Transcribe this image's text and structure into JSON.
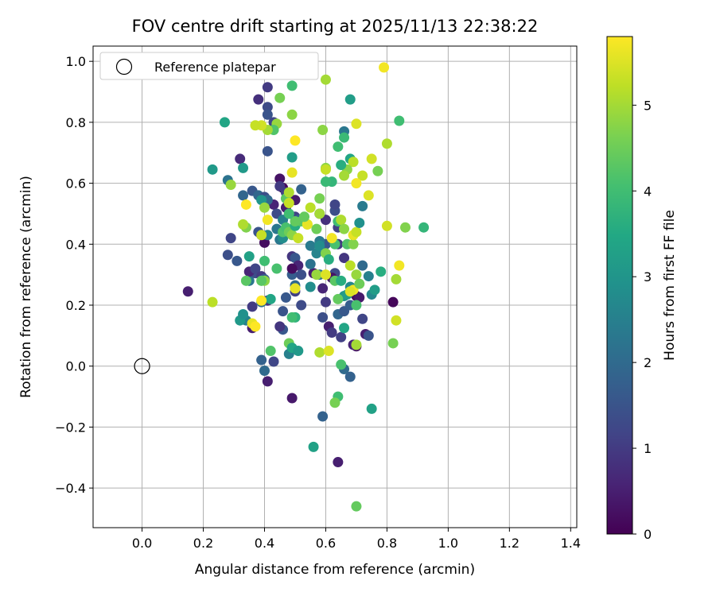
{
  "chart_data": {
    "type": "scatter",
    "title": "FOV centre drift starting at 2025/11/13 22:38:22",
    "xlabel": "Angular distance from reference (arcmin)",
    "ylabel": "Rotation from reference (arcmin)",
    "xlim": [
      -0.16,
      1.42
    ],
    "ylim": [
      -0.53,
      1.05
    ],
    "xticks": [
      0.0,
      0.2,
      0.4,
      0.6,
      0.8,
      1.0,
      1.2,
      1.4
    ],
    "xtick_labels": [
      "0.0",
      "0.2",
      "0.4",
      "0.6",
      "0.8",
      "1.0",
      "1.2",
      "1.4"
    ],
    "yticks": [
      -0.4,
      -0.2,
      0.0,
      0.2,
      0.4,
      0.6,
      0.8,
      1.0
    ],
    "ytick_labels": [
      "−0.4",
      "−0.2",
      "0.0",
      "0.2",
      "0.4",
      "0.6",
      "0.8",
      "1.0"
    ],
    "grid": true,
    "legend": {
      "placement": "top-left",
      "entries": [
        "Reference platepar"
      ]
    },
    "reference_point": {
      "x": 0.0,
      "y": 0.0,
      "label": "Reference platepar"
    },
    "colorbar": {
      "label": "Hours from first FF file",
      "min": 0,
      "max": 5.8,
      "ticks": [
        0,
        1,
        2,
        3,
        4,
        5
      ],
      "tick_labels": [
        "0",
        "1",
        "2",
        "3",
        "4",
        "5"
      ],
      "colormap": "viridis"
    },
    "series": [
      {
        "name": "FOV centre drift",
        "points": [
          [
            0.15,
            0.245,
            0.5
          ],
          [
            0.41,
            0.915,
            1.0
          ],
          [
            0.38,
            0.875,
            0.8
          ],
          [
            0.41,
            0.85,
            1.3
          ],
          [
            0.41,
            0.825,
            1.5
          ],
          [
            0.43,
            0.8,
            1.2
          ],
          [
            0.41,
            0.705,
            1.5
          ],
          [
            0.32,
            0.68,
            0.7
          ],
          [
            0.28,
            0.61,
            2.2
          ],
          [
            0.45,
            0.615,
            0.3
          ],
          [
            0.46,
            0.585,
            0.1
          ],
          [
            0.47,
            0.57,
            1.1
          ],
          [
            0.43,
            0.53,
            0.6
          ],
          [
            0.5,
            0.545,
            0.4
          ],
          [
            0.52,
            0.58,
            1.8
          ],
          [
            0.36,
            0.575,
            1.6
          ],
          [
            0.38,
            0.56,
            1.9
          ],
          [
            0.4,
            0.555,
            1.4
          ],
          [
            0.41,
            0.545,
            2.0
          ],
          [
            0.44,
            0.5,
            1.3
          ],
          [
            0.47,
            0.52,
            0.5
          ],
          [
            0.48,
            0.5,
            2.4
          ],
          [
            0.5,
            0.49,
            1.1
          ],
          [
            0.51,
            0.48,
            1.7
          ],
          [
            0.58,
            0.5,
            1.0
          ],
          [
            0.6,
            0.48,
            0.8
          ],
          [
            0.63,
            0.51,
            1.4
          ],
          [
            0.64,
            0.455,
            1.1
          ],
          [
            0.63,
            0.53,
            1.2
          ],
          [
            0.6,
            0.4,
            1.6
          ],
          [
            0.58,
            0.41,
            2.4
          ],
          [
            0.64,
            0.4,
            1.0
          ],
          [
            0.66,
            0.355,
            0.9
          ],
          [
            0.63,
            0.305,
            1.3
          ],
          [
            0.59,
            0.255,
            0.6
          ],
          [
            0.58,
            0.3,
            2.2
          ],
          [
            0.62,
            0.29,
            0.3
          ],
          [
            0.6,
            0.21,
            1.0
          ],
          [
            0.59,
            0.16,
            1.4
          ],
          [
            0.61,
            0.13,
            0.5
          ],
          [
            0.62,
            0.11,
            1.0
          ],
          [
            0.65,
            0.095,
            1.1
          ],
          [
            0.64,
            0.17,
            1.9
          ],
          [
            0.66,
            0.18,
            1.6
          ],
          [
            0.68,
            0.2,
            1.7
          ],
          [
            0.7,
            0.23,
            0.2
          ],
          [
            0.71,
            0.225,
            0.4
          ],
          [
            0.72,
            0.155,
            1.2
          ],
          [
            0.73,
            0.105,
            0.5
          ],
          [
            0.74,
            0.1,
            1.5
          ],
          [
            0.7,
            0.065,
            0.3
          ],
          [
            0.69,
            0.07,
            0.6
          ],
          [
            0.66,
            -0.01,
            2.0
          ],
          [
            0.68,
            -0.035,
            1.8
          ],
          [
            0.64,
            -0.315,
            0.5
          ],
          [
            0.59,
            -0.165,
            1.8
          ],
          [
            0.49,
            -0.105,
            0.4
          ],
          [
            0.41,
            -0.05,
            0.5
          ],
          [
            0.4,
            -0.015,
            2.0
          ],
          [
            0.39,
            0.02,
            1.8
          ],
          [
            0.43,
            0.015,
            1.2
          ],
          [
            0.48,
            0.04,
            2.5
          ],
          [
            0.46,
            0.12,
            1.6
          ],
          [
            0.45,
            0.13,
            0.9
          ],
          [
            0.46,
            0.18,
            1.5
          ],
          [
            0.47,
            0.225,
            1.6
          ],
          [
            0.5,
            0.245,
            1.1
          ],
          [
            0.52,
            0.2,
            1.3
          ],
          [
            0.41,
            0.215,
            0.8
          ],
          [
            0.39,
            0.21,
            2.1
          ],
          [
            0.36,
            0.195,
            1.0
          ],
          [
            0.36,
            0.125,
            0.5
          ],
          [
            0.34,
            0.15,
            2.5
          ],
          [
            0.32,
            0.15,
            3.1
          ],
          [
            0.35,
            0.28,
            2.3
          ],
          [
            0.37,
            0.305,
            1.4
          ],
          [
            0.35,
            0.31,
            0.6
          ],
          [
            0.37,
            0.32,
            1.2
          ],
          [
            0.39,
            0.295,
            1.0
          ],
          [
            0.4,
            0.285,
            1.7
          ],
          [
            0.31,
            0.345,
            1.6
          ],
          [
            0.28,
            0.365,
            1.4
          ],
          [
            0.29,
            0.42,
            1.2
          ],
          [
            0.34,
            0.455,
            4.7
          ],
          [
            0.38,
            0.44,
            1.5
          ],
          [
            0.39,
            0.43,
            0.3
          ],
          [
            0.4,
            0.405,
            0.2
          ],
          [
            0.41,
            0.43,
            2.6
          ],
          [
            0.45,
            0.415,
            2.3
          ],
          [
            0.46,
            0.42,
            2.8
          ],
          [
            0.44,
            0.45,
            2.3
          ],
          [
            0.46,
            0.48,
            2.5
          ],
          [
            0.49,
            0.36,
            0.9
          ],
          [
            0.5,
            0.355,
            1.6
          ],
          [
            0.51,
            0.33,
            0.6
          ],
          [
            0.49,
            0.3,
            1.7
          ],
          [
            0.49,
            0.32,
            0.2
          ],
          [
            0.52,
            0.3,
            1.4
          ],
          [
            0.5,
            0.265,
            2.0
          ],
          [
            0.55,
            0.26,
            2.8
          ],
          [
            0.56,
            0.305,
            0.5
          ],
          [
            0.57,
            0.37,
            2.6
          ],
          [
            0.55,
            0.335,
            2.2
          ],
          [
            0.55,
            0.395,
            2.4
          ],
          [
            0.58,
            0.395,
            2.8
          ],
          [
            0.57,
            0.3,
            4.9
          ],
          [
            0.6,
            0.3,
            5.5
          ],
          [
            0.63,
            0.28,
            4.3
          ],
          [
            0.65,
            0.28,
            3.6
          ],
          [
            0.66,
            0.23,
            3.0
          ],
          [
            0.64,
            0.22,
            4.4
          ],
          [
            0.67,
            0.235,
            3.2
          ],
          [
            0.68,
            0.26,
            2.7
          ],
          [
            0.7,
            0.2,
            4.1
          ],
          [
            0.66,
            0.125,
            3.4
          ],
          [
            0.65,
            0.005,
            4.1
          ],
          [
            0.64,
            -0.1,
            4.0
          ],
          [
            0.63,
            -0.12,
            4.6
          ],
          [
            0.75,
            -0.14,
            3.3
          ],
          [
            0.7,
            -0.46,
            4.4
          ],
          [
            0.56,
            -0.265,
            3.3
          ],
          [
            0.58,
            0.045,
            5.1
          ],
          [
            0.61,
            0.05,
            5.5
          ],
          [
            0.48,
            0.075,
            4.5
          ],
          [
            0.42,
            0.05,
            4.2
          ],
          [
            0.49,
            0.06,
            3.4
          ],
          [
            0.51,
            0.05,
            3.1
          ],
          [
            0.5,
            0.16,
            3.7
          ],
          [
            0.49,
            0.16,
            4.0
          ],
          [
            0.42,
            0.22,
            3.4
          ],
          [
            0.4,
            0.28,
            4.8
          ],
          [
            0.39,
            0.28,
            4.3
          ],
          [
            0.35,
            0.36,
            3.3
          ],
          [
            0.34,
            0.28,
            4.3
          ],
          [
            0.33,
            0.17,
            2.9
          ],
          [
            0.36,
            0.14,
            5.6
          ],
          [
            0.37,
            0.13,
            5.8
          ],
          [
            0.39,
            0.215,
            5.8
          ],
          [
            0.23,
            0.21,
            5.2
          ],
          [
            0.39,
            0.43,
            5.3
          ],
          [
            0.4,
            0.345,
            4.0
          ],
          [
            0.44,
            0.32,
            4.1
          ],
          [
            0.46,
            0.44,
            4.2
          ],
          [
            0.47,
            0.455,
            4.1
          ],
          [
            0.48,
            0.44,
            4.5
          ],
          [
            0.49,
            0.43,
            4.8
          ],
          [
            0.5,
            0.46,
            3.6
          ],
          [
            0.5,
            0.255,
            5.6
          ],
          [
            0.51,
            0.42,
            5.3
          ],
          [
            0.52,
            0.475,
            4.3
          ],
          [
            0.54,
            0.465,
            4.9
          ],
          [
            0.57,
            0.45,
            4.5
          ],
          [
            0.58,
            0.5,
            5.0
          ],
          [
            0.6,
            0.37,
            4.7
          ],
          [
            0.61,
            0.35,
            3.6
          ],
          [
            0.63,
            0.4,
            4.1
          ],
          [
            0.62,
            0.42,
            5.7
          ],
          [
            0.64,
            0.475,
            4.0
          ],
          [
            0.65,
            0.48,
            5.1
          ],
          [
            0.66,
            0.45,
            4.8
          ],
          [
            0.67,
            0.4,
            4.2
          ],
          [
            0.69,
            0.4,
            4.7
          ],
          [
            0.69,
            0.43,
            5.6
          ],
          [
            0.7,
            0.44,
            5.3
          ],
          [
            0.68,
            0.33,
            5.2
          ],
          [
            0.7,
            0.3,
            4.9
          ],
          [
            0.69,
            0.25,
            5.7
          ],
          [
            0.68,
            0.245,
            5.5
          ],
          [
            0.71,
            0.27,
            4.5
          ],
          [
            0.7,
            0.07,
            5.0
          ],
          [
            0.72,
            0.33,
            2.0
          ],
          [
            0.74,
            0.295,
            2.5
          ],
          [
            0.75,
            0.235,
            2.7
          ],
          [
            0.76,
            0.25,
            3.2
          ],
          [
            0.78,
            0.31,
            3.6
          ],
          [
            0.82,
            0.21,
            0.1
          ],
          [
            0.83,
            0.285,
            5.0
          ],
          [
            0.83,
            0.15,
            5.4
          ],
          [
            0.82,
            0.075,
            4.6
          ],
          [
            0.84,
            0.33,
            5.7
          ],
          [
            0.8,
            0.46,
            5.4
          ],
          [
            0.86,
            0.455,
            4.7
          ],
          [
            0.92,
            0.455,
            3.8
          ],
          [
            0.79,
            0.98,
            5.7
          ],
          [
            0.84,
            0.805,
            4.0
          ],
          [
            0.8,
            0.73,
            5.1
          ],
          [
            0.77,
            0.64,
            4.6
          ],
          [
            0.75,
            0.68,
            5.4
          ],
          [
            0.74,
            0.56,
            5.5
          ],
          [
            0.72,
            0.525,
            2.4
          ],
          [
            0.71,
            0.47,
            2.9
          ],
          [
            0.72,
            0.625,
            5.3
          ],
          [
            0.7,
            0.6,
            5.7
          ],
          [
            0.7,
            0.795,
            5.5
          ],
          [
            0.68,
            0.875,
            3.2
          ],
          [
            0.68,
            0.68,
            3.4
          ],
          [
            0.69,
            0.67,
            5.2
          ],
          [
            0.67,
            0.645,
            4.8
          ],
          [
            0.66,
            0.625,
            5.0
          ],
          [
            0.65,
            0.66,
            3.6
          ],
          [
            0.66,
            0.77,
            2.3
          ],
          [
            0.66,
            0.75,
            3.9
          ],
          [
            0.64,
            0.72,
            4.0
          ],
          [
            0.62,
            0.605,
            3.8
          ],
          [
            0.6,
            0.605,
            3.9
          ],
          [
            0.6,
            0.65,
            4.8
          ],
          [
            0.6,
            0.645,
            5.3
          ],
          [
            0.59,
            0.775,
            4.8
          ],
          [
            0.6,
            0.94,
            5.0
          ],
          [
            0.58,
            0.55,
            4.6
          ],
          [
            0.55,
            0.52,
            5.2
          ],
          [
            0.54,
            0.465,
            5.6
          ],
          [
            0.53,
            0.49,
            4.4
          ],
          [
            0.5,
            0.475,
            4.4
          ],
          [
            0.49,
            0.635,
            5.6
          ],
          [
            0.5,
            0.74,
            5.8
          ],
          [
            0.49,
            0.685,
            3.2
          ],
          [
            0.49,
            0.825,
            4.8
          ],
          [
            0.49,
            0.92,
            4.0
          ],
          [
            0.45,
            0.88,
            4.6
          ],
          [
            0.44,
            0.795,
            4.9
          ],
          [
            0.43,
            0.775,
            4.2
          ],
          [
            0.41,
            0.775,
            5.0
          ],
          [
            0.39,
            0.79,
            5.4
          ],
          [
            0.37,
            0.79,
            5.3
          ],
          [
            0.33,
            0.65,
            3.1
          ],
          [
            0.27,
            0.8,
            3.4
          ],
          [
            0.23,
            0.645,
            3.1
          ],
          [
            0.29,
            0.595,
            4.9
          ],
          [
            0.33,
            0.56,
            1.9
          ],
          [
            0.34,
            0.53,
            5.8
          ],
          [
            0.33,
            0.465,
            5.1
          ],
          [
            0.39,
            0.545,
            3.0
          ],
          [
            0.4,
            0.52,
            4.9
          ],
          [
            0.41,
            0.48,
            5.7
          ],
          [
            0.47,
            0.55,
            4.3
          ],
          [
            0.48,
            0.57,
            5.1
          ],
          [
            0.48,
            0.535,
            5.3
          ],
          [
            0.48,
            0.5,
            4.0
          ],
          [
            0.45,
            0.59,
            1.0
          ]
        ]
      }
    ]
  }
}
